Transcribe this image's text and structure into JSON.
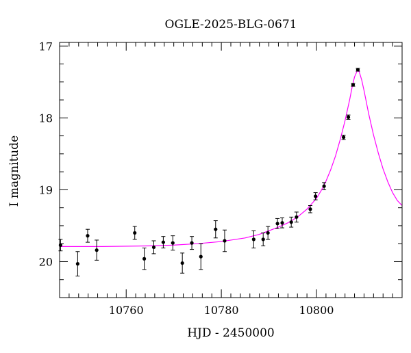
{
  "chart_data": {
    "type": "scatter",
    "title": "OGLE-2025-BLG-0671",
    "xlabel": "HJD - 2450000",
    "ylabel": "I magnitude",
    "xlim": [
      10746,
      10818
    ],
    "ylim": [
      20.5,
      16.95
    ],
    "y_inverted": true,
    "x_major_ticks": [
      10760,
      10780,
      10800
    ],
    "x_minor_step": 2,
    "y_major_ticks": [
      17,
      18,
      19,
      20
    ],
    "y_minor_step": 0.25,
    "grid": false,
    "legend": "none",
    "series": [
      {
        "type": "scatter",
        "marker": "filled-circle",
        "color": "#000000",
        "points": [
          {
            "x": 10746.2,
            "y": 19.77,
            "err": 0.08
          },
          {
            "x": 10749.8,
            "y": 20.03,
            "err": 0.17
          },
          {
            "x": 10751.9,
            "y": 19.64,
            "err": 0.09
          },
          {
            "x": 10753.8,
            "y": 19.84,
            "err": 0.14
          },
          {
            "x": 10761.8,
            "y": 19.6,
            "err": 0.09
          },
          {
            "x": 10763.8,
            "y": 19.96,
            "err": 0.15
          },
          {
            "x": 10765.8,
            "y": 19.8,
            "err": 0.09
          },
          {
            "x": 10767.8,
            "y": 19.73,
            "err": 0.08
          },
          {
            "x": 10769.8,
            "y": 19.74,
            "err": 0.1
          },
          {
            "x": 10771.8,
            "y": 20.02,
            "err": 0.14
          },
          {
            "x": 10773.8,
            "y": 19.74,
            "err": 0.09
          },
          {
            "x": 10775.7,
            "y": 19.93,
            "err": 0.18
          },
          {
            "x": 10778.8,
            "y": 19.55,
            "err": 0.12
          },
          {
            "x": 10780.7,
            "y": 19.71,
            "err": 0.15
          },
          {
            "x": 10786.8,
            "y": 19.69,
            "err": 0.12
          },
          {
            "x": 10788.8,
            "y": 19.69,
            "err": 0.09
          },
          {
            "x": 10789.8,
            "y": 19.6,
            "err": 0.09
          },
          {
            "x": 10791.8,
            "y": 19.47,
            "err": 0.07
          },
          {
            "x": 10792.8,
            "y": 19.46,
            "err": 0.07
          },
          {
            "x": 10794.7,
            "y": 19.45,
            "err": 0.07
          },
          {
            "x": 10795.8,
            "y": 19.38,
            "err": 0.07
          },
          {
            "x": 10798.7,
            "y": 19.27,
            "err": 0.05
          },
          {
            "x": 10799.8,
            "y": 19.09,
            "err": 0.05
          },
          {
            "x": 10801.6,
            "y": 18.95,
            "err": 0.05
          },
          {
            "x": 10805.7,
            "y": 18.27,
            "err": 0.03
          },
          {
            "x": 10806.7,
            "y": 17.99,
            "err": 0.03
          },
          {
            "x": 10807.7,
            "y": 17.54,
            "err": 0.02
          },
          {
            "x": 10808.7,
            "y": 17.33,
            "err": 0.02
          }
        ]
      },
      {
        "type": "line",
        "color": "#ff00ff",
        "points": [
          {
            "x": 10746,
            "y": 19.79
          },
          {
            "x": 10755,
            "y": 19.79
          },
          {
            "x": 10765,
            "y": 19.78
          },
          {
            "x": 10770,
            "y": 19.77
          },
          {
            "x": 10775,
            "y": 19.75
          },
          {
            "x": 10780,
            "y": 19.72
          },
          {
            "x": 10785,
            "y": 19.67
          },
          {
            "x": 10788,
            "y": 19.62
          },
          {
            "x": 10790,
            "y": 19.57
          },
          {
            "x": 10792,
            "y": 19.52
          },
          {
            "x": 10794,
            "y": 19.46
          },
          {
            "x": 10796,
            "y": 19.38
          },
          {
            "x": 10798,
            "y": 19.27
          },
          {
            "x": 10800,
            "y": 19.12
          },
          {
            "x": 10801,
            "y": 19.01
          },
          {
            "x": 10802,
            "y": 18.88
          },
          {
            "x": 10803,
            "y": 18.72
          },
          {
            "x": 10804,
            "y": 18.53
          },
          {
            "x": 10805,
            "y": 18.3
          },
          {
            "x": 10806,
            "y": 18.04
          },
          {
            "x": 10807,
            "y": 17.74
          },
          {
            "x": 10807.5,
            "y": 17.57
          },
          {
            "x": 10808,
            "y": 17.43
          },
          {
            "x": 10808.6,
            "y": 17.34
          },
          {
            "x": 10809,
            "y": 17.36
          },
          {
            "x": 10809.5,
            "y": 17.47
          },
          {
            "x": 10810,
            "y": 17.62
          },
          {
            "x": 10811,
            "y": 17.95
          },
          {
            "x": 10812,
            "y": 18.24
          },
          {
            "x": 10813,
            "y": 18.49
          },
          {
            "x": 10814,
            "y": 18.71
          },
          {
            "x": 10815,
            "y": 18.89
          },
          {
            "x": 10816,
            "y": 19.04
          },
          {
            "x": 10817,
            "y": 19.15
          },
          {
            "x": 10818,
            "y": 19.22
          }
        ]
      }
    ]
  }
}
